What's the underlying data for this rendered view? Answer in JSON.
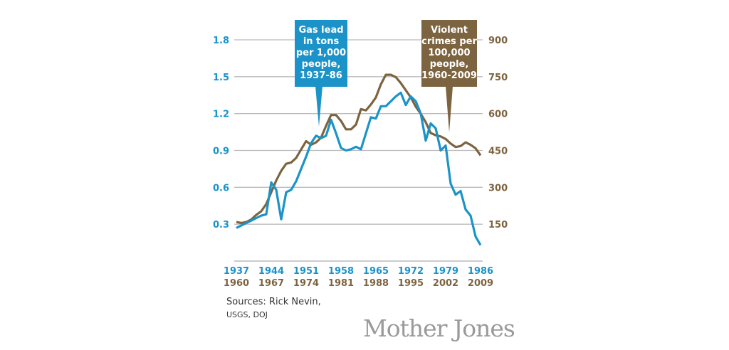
{
  "chart_data": {
    "type": "line",
    "colors": {
      "lead": "#1b93c9",
      "crime": "#7d6440",
      "grid": "#bbbbbb"
    },
    "grid": true,
    "x_ticks_top": [
      "1937",
      "1944",
      "1951",
      "1958",
      "1965",
      "1972",
      "1979",
      "1986"
    ],
    "x_ticks_bottom": [
      "1960",
      "1967",
      "1974",
      "1981",
      "1988",
      "1995",
      "2002",
      "2009"
    ],
    "y_left_ticks": [
      "1.8",
      "1.5",
      "1.2",
      "0.9",
      "0.6",
      "0.3"
    ],
    "y_right_ticks": [
      "900",
      "750",
      "600",
      "450",
      "300",
      "150"
    ],
    "y_left_range": [
      0,
      1.8
    ],
    "y_right_range": [
      0,
      900
    ],
    "series": [
      {
        "name": "Gas lead in tons per 1,000 people, 1937-86",
        "axis": "left",
        "x_start": 1937,
        "values": [
          0.27,
          0.29,
          0.31,
          0.33,
          0.35,
          0.37,
          0.38,
          0.64,
          0.58,
          0.34,
          0.56,
          0.58,
          0.65,
          0.75,
          0.85,
          0.96,
          1.02,
          1.0,
          1.02,
          1.15,
          1.04,
          0.92,
          0.9,
          0.91,
          0.93,
          0.91,
          1.04,
          1.17,
          1.16,
          1.26,
          1.26,
          1.3,
          1.34,
          1.37,
          1.27,
          1.34,
          1.3,
          1.2,
          0.98,
          1.12,
          1.08,
          0.9,
          0.94,
          0.63,
          0.54,
          0.57,
          0.42,
          0.37,
          0.2,
          0.13
        ]
      },
      {
        "name": "Violent crimes per 100,000 people, 1960-2009",
        "axis": "right",
        "x_start": 1960,
        "values": [
          159,
          155,
          159,
          169,
          188,
          203,
          232,
          280,
          328,
          367,
          396,
          401,
          420,
          454,
          488,
          473,
          483,
          502,
          550,
          594,
          594,
          570,
          536,
          536,
          555,
          618,
          613,
          637,
          666,
          719,
          758,
          758,
          748,
          724,
          695,
          666,
          628,
          599,
          565,
          521,
          512,
          507,
          497,
          478,
          464,
          468,
          483,
          473,
          459,
          430
        ]
      }
    ],
    "callouts": {
      "lead": [
        "Gas lead",
        "in tons",
        "per 1,000",
        "people,",
        "1937-86"
      ],
      "crime": [
        "Violent",
        "crimes per",
        "100,000",
        "people,",
        "1960-2009"
      ]
    }
  },
  "sources": {
    "line1": "Sources: Rick Nevin,",
    "line2": "USGS, DOJ"
  },
  "logo": "Mother Jones"
}
